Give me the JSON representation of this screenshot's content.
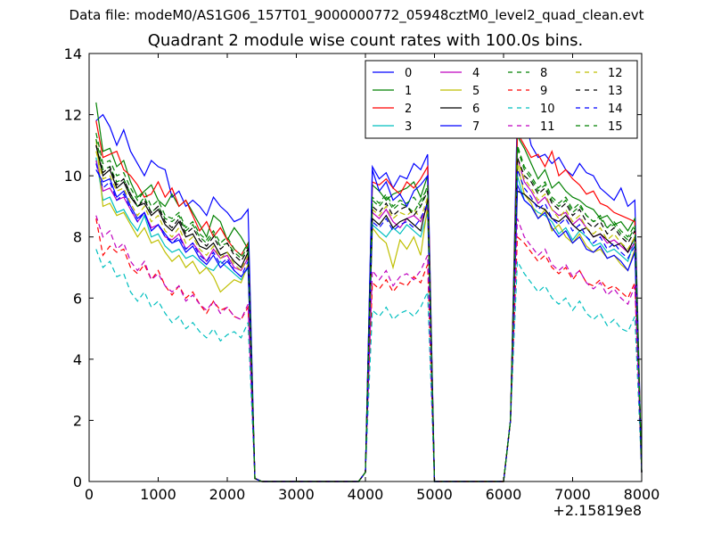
{
  "header": {
    "data_file_label": "Data file: modeM0/AS1G06_157T01_9000000772_05948cztM0_level2_quad_clean.evt"
  },
  "chart_data": {
    "type": "line",
    "title": "Quadrant 2 module wise count rates with 100.0s bins.",
    "xlabel": "",
    "ylabel": "",
    "x_offset_label": "+2.15819e8",
    "xlim": [
      0,
      8000
    ],
    "ylim": [
      0,
      14
    ],
    "xticks": [
      0,
      1000,
      2000,
      3000,
      4000,
      5000,
      6000,
      7000,
      8000
    ],
    "yticks": [
      0,
      2,
      4,
      6,
      8,
      10,
      12,
      14
    ],
    "grid": false,
    "legend_position": "top-right",
    "x": [
      100,
      200,
      300,
      400,
      500,
      600,
      700,
      800,
      900,
      1000,
      1100,
      1200,
      1300,
      1400,
      1500,
      1600,
      1700,
      1800,
      1900,
      2000,
      2100,
      2200,
      2300,
      2400,
      2500,
      2600,
      2700,
      2800,
      2900,
      3000,
      3100,
      3200,
      3300,
      3400,
      3500,
      3600,
      3700,
      3800,
      3900,
      4000,
      4100,
      4200,
      4300,
      4400,
      4500,
      4600,
      4700,
      4800,
      4900,
      5000,
      5100,
      5200,
      5300,
      5400,
      5500,
      5600,
      5700,
      5800,
      5900,
      6000,
      6100,
      6200,
      6300,
      6400,
      6500,
      6600,
      6700,
      6800,
      6900,
      7000,
      7100,
      7200,
      7300,
      7400,
      7500,
      7600,
      7700,
      7800,
      7900,
      8000
    ],
    "series": [
      {
        "name": "0",
        "color": "#0000ff",
        "dash": "solid",
        "seg": [
          11.8,
          12.0,
          11.6,
          11.0,
          11.5,
          10.8,
          10.4,
          10.0,
          10.5,
          10.3,
          10.2,
          9.3,
          9.5,
          9.0,
          9.2,
          9.0,
          8.7,
          9.3,
          9.0,
          8.8,
          8.5,
          8.6,
          8.9
        ],
        "pulse": [
          10.3,
          9.9,
          10.1,
          9.6,
          10.0,
          9.9,
          10.4,
          10.2,
          10.7
        ],
        "last": [
          12.2,
          12.0,
          11.0,
          10.6,
          10.7,
          10.4,
          10.6,
          10.2,
          10.0,
          10.4,
          10.1,
          10.0,
          9.6,
          9.4,
          9.2,
          9.6,
          9.0,
          9.2
        ]
      },
      {
        "name": "1",
        "color": "#008000",
        "dash": "solid",
        "seg": [
          12.4,
          10.8,
          10.9,
          10.3,
          10.5,
          9.8,
          9.3,
          9.5,
          9.7,
          9.2,
          9.0,
          9.4,
          9.0,
          9.2,
          8.8,
          8.4,
          8.0,
          8.7,
          8.5,
          7.9,
          8.3,
          8.0,
          7.6
        ],
        "pulse": [
          9.7,
          9.5,
          9.2,
          9.4,
          9.5,
          9.6,
          9.8,
          9.3,
          10.0
        ],
        "last": [
          11.3,
          10.9,
          10.4,
          9.9,
          10.2,
          9.6,
          9.8,
          9.5,
          9.3,
          9.2,
          9.0,
          8.9,
          8.6,
          8.7,
          8.4,
          8.5,
          8.2,
          8.6
        ]
      },
      {
        "name": "2",
        "color": "#ff0000",
        "dash": "solid",
        "seg": [
          11.8,
          10.6,
          10.7,
          10.8,
          10.2,
          10.0,
          9.7,
          9.3,
          9.4,
          9.8,
          9.3,
          9.6,
          9.0,
          9.2,
          8.7,
          8.2,
          8.5,
          8.0,
          8.3,
          7.9,
          7.6,
          7.4,
          7.8
        ],
        "pulse": [
          9.8,
          9.7,
          9.9,
          9.6,
          9.4,
          9.8,
          9.6,
          9.9,
          10.3
        ],
        "last": [
          11.4,
          11.0,
          10.6,
          10.7,
          10.3,
          10.8,
          10.0,
          10.2,
          9.9,
          9.7,
          9.4,
          9.5,
          9.1,
          9.0,
          8.8,
          8.7,
          8.6,
          8.5
        ]
      },
      {
        "name": "3",
        "color": "#00bfbf",
        "dash": "solid",
        "seg": [
          10.6,
          9.2,
          9.3,
          8.8,
          8.9,
          8.5,
          8.2,
          8.7,
          8.0,
          8.1,
          7.7,
          7.5,
          7.6,
          7.3,
          7.4,
          7.2,
          7.0,
          6.9,
          7.2,
          7.0,
          6.8,
          6.6,
          7.0
        ],
        "pulse": [
          8.4,
          8.2,
          8.0,
          8.3,
          8.1,
          8.4,
          8.2,
          8.0,
          8.8
        ],
        "last": [
          10.0,
          9.2,
          9.0,
          8.8,
          8.7,
          8.5,
          8.1,
          8.3,
          7.9,
          8.2,
          8.0,
          7.7,
          7.8,
          7.5,
          7.6,
          7.4,
          7.2,
          7.9
        ]
      },
      {
        "name": "4",
        "color": "#bf00bf",
        "dash": "solid",
        "seg": [
          10.5,
          9.5,
          9.6,
          9.2,
          9.3,
          8.9,
          8.5,
          8.8,
          8.3,
          8.4,
          8.0,
          7.9,
          8.1,
          7.6,
          7.8,
          7.5,
          7.2,
          7.6,
          7.3,
          7.4,
          7.0,
          6.9,
          7.3
        ],
        "pulse": [
          8.8,
          8.6,
          8.9,
          8.5,
          8.3,
          8.6,
          8.7,
          8.5,
          9.0
        ],
        "last": [
          10.6,
          9.8,
          9.5,
          9.1,
          9.3,
          8.9,
          8.7,
          8.8,
          8.4,
          8.6,
          8.3,
          8.0,
          8.1,
          7.8,
          7.9,
          7.7,
          7.5,
          7.8
        ]
      },
      {
        "name": "5",
        "color": "#bfbf00",
        "dash": "solid",
        "seg": [
          11.2,
          9.0,
          9.1,
          8.7,
          8.8,
          8.4,
          8.0,
          8.3,
          7.8,
          7.9,
          7.5,
          7.2,
          7.4,
          7.0,
          7.2,
          6.8,
          7.0,
          6.7,
          6.2,
          6.4,
          6.6,
          6.5,
          7.1
        ],
        "pulse": [
          8.3,
          8.0,
          7.8,
          7.0,
          7.9,
          7.6,
          8.0,
          7.4,
          9.0
        ],
        "last": [
          10.4,
          9.4,
          9.1,
          8.6,
          8.9,
          8.2,
          8.4,
          8.0,
          7.8,
          8.1,
          7.7,
          7.5,
          7.6,
          7.3,
          7.4,
          7.1,
          6.9,
          7.6
        ]
      },
      {
        "name": "6",
        "color": "#000000",
        "dash": "solid",
        "seg": [
          11.0,
          10.0,
          10.2,
          9.6,
          9.8,
          9.3,
          9.0,
          9.1,
          8.7,
          8.9,
          8.4,
          8.2,
          8.5,
          8.0,
          8.1,
          7.7,
          7.6,
          7.8,
          7.4,
          7.5,
          7.2,
          7.0,
          7.5
        ],
        "pulse": [
          8.6,
          8.4,
          8.7,
          8.3,
          8.5,
          8.6,
          8.4,
          8.2,
          9.2
        ],
        "last": [
          9.5,
          9.4,
          9.2,
          9.0,
          8.9,
          8.6,
          8.5,
          8.7,
          8.4,
          8.2,
          8.3,
          8.0,
          8.1,
          7.9,
          7.7,
          7.8,
          7.5,
          8.0
        ]
      },
      {
        "name": "7",
        "color": "#0000ff",
        "dash": "solid",
        "seg": [
          10.2,
          9.8,
          9.9,
          9.3,
          9.5,
          9.0,
          8.6,
          8.8,
          8.2,
          8.4,
          8.1,
          7.8,
          7.9,
          7.5,
          7.7,
          7.3,
          7.1,
          7.4,
          7.0,
          7.2,
          6.9,
          6.7,
          7.0
        ],
        "pulse": [
          10.2,
          9.5,
          9.8,
          9.2,
          9.4,
          9.0,
          9.5,
          9.7,
          10.0
        ],
        "last": [
          9.7,
          9.2,
          9.0,
          8.6,
          8.8,
          8.3,
          8.0,
          8.2,
          7.8,
          8.0,
          7.6,
          7.5,
          7.7,
          7.3,
          7.4,
          7.2,
          6.9,
          7.5
        ]
      },
      {
        "name": "8",
        "color": "#008000",
        "dash": "dashed",
        "seg": [
          11.2,
          10.2,
          10.3,
          9.8,
          9.9,
          9.4,
          9.0,
          9.3,
          8.8,
          9.0,
          8.6,
          8.5,
          8.7,
          8.2,
          8.4,
          8.0,
          7.8,
          8.1,
          7.7,
          7.8,
          7.5,
          7.3,
          7.7
        ],
        "pulse": [
          9.2,
          9.0,
          9.3,
          8.9,
          9.1,
          9.0,
          8.8,
          9.2,
          9.6
        ],
        "last": [
          10.9,
          10.2,
          9.9,
          9.5,
          9.7,
          9.2,
          9.0,
          9.2,
          8.8,
          9.0,
          8.7,
          8.5,
          8.6,
          8.3,
          8.4,
          8.1,
          7.9,
          8.3
        ]
      },
      {
        "name": "9",
        "color": "#ff0000",
        "dash": "dashed",
        "seg": [
          8.6,
          7.4,
          7.7,
          7.5,
          7.6,
          7.0,
          6.8,
          7.1,
          6.6,
          6.9,
          6.4,
          6.1,
          6.4,
          6.0,
          6.2,
          5.8,
          5.5,
          5.9,
          5.6,
          5.7,
          5.4,
          5.3,
          5.7
        ],
        "pulse": [
          6.5,
          6.3,
          6.6,
          6.2,
          6.5,
          6.4,
          6.7,
          6.5,
          7.1
        ],
        "last": [
          8.0,
          7.8,
          7.5,
          7.2,
          7.4,
          7.0,
          6.8,
          7.0,
          6.6,
          6.9,
          6.5,
          6.4,
          6.6,
          6.3,
          6.4,
          6.2,
          6.0,
          6.5
        ]
      },
      {
        "name": "10",
        "color": "#00bfbf",
        "dash": "dashed",
        "seg": [
          7.6,
          7.0,
          7.2,
          6.7,
          6.8,
          6.2,
          5.9,
          6.2,
          5.7,
          5.9,
          5.5,
          5.2,
          5.4,
          5.0,
          5.2,
          4.9,
          4.7,
          5.0,
          4.6,
          4.8,
          4.9,
          4.7,
          5.2
        ],
        "pulse": [
          5.6,
          5.4,
          5.7,
          5.3,
          5.5,
          5.6,
          5.4,
          5.7,
          6.2
        ],
        "last": [
          7.2,
          6.8,
          6.5,
          6.2,
          6.4,
          6.0,
          5.8,
          6.0,
          5.6,
          5.9,
          5.5,
          5.3,
          5.5,
          5.1,
          5.3,
          5.0,
          4.9,
          5.4
        ]
      },
      {
        "name": "11",
        "color": "#bf00bf",
        "dash": "dashed",
        "seg": [
          8.7,
          8.0,
          8.2,
          7.6,
          7.8,
          7.2,
          6.9,
          7.2,
          6.6,
          6.8,
          6.4,
          6.2,
          6.4,
          5.9,
          6.1,
          5.8,
          5.6,
          5.9,
          5.5,
          5.7,
          5.4,
          5.3,
          5.8
        ],
        "pulse": [
          6.9,
          6.6,
          6.9,
          6.4,
          6.7,
          6.8,
          6.6,
          6.9,
          7.4
        ],
        "last": [
          8.6,
          8.0,
          7.7,
          7.4,
          7.6,
          7.1,
          6.9,
          7.1,
          6.7,
          6.9,
          6.5,
          6.3,
          6.5,
          6.1,
          6.3,
          6.0,
          5.8,
          6.4
        ]
      },
      {
        "name": "12",
        "color": "#bfbf00",
        "dash": "dashed",
        "seg": [
          10.8,
          9.9,
          10.0,
          9.5,
          9.6,
          9.1,
          8.7,
          9.0,
          8.5,
          8.7,
          8.2,
          8.0,
          8.3,
          7.8,
          8.0,
          7.6,
          7.4,
          7.7,
          7.3,
          7.5,
          7.1,
          6.9,
          7.4
        ],
        "pulse": [
          8.9,
          8.7,
          9.0,
          8.6,
          8.8,
          8.7,
          8.9,
          8.6,
          9.3
        ],
        "last": [
          10.5,
          9.9,
          9.6,
          9.2,
          9.4,
          8.9,
          8.6,
          8.9,
          8.5,
          8.7,
          8.3,
          8.1,
          8.3,
          7.9,
          8.1,
          7.8,
          7.6,
          8.0
        ]
      },
      {
        "name": "13",
        "color": "#000000",
        "dash": "dashed",
        "seg": [
          11.0,
          10.1,
          10.3,
          9.7,
          9.9,
          9.4,
          9.0,
          9.2,
          8.8,
          9.0,
          8.5,
          8.3,
          8.6,
          8.1,
          8.3,
          7.9,
          7.7,
          8.0,
          7.6,
          7.8,
          7.4,
          7.2,
          7.6
        ],
        "pulse": [
          9.0,
          8.8,
          9.1,
          8.7,
          8.9,
          9.0,
          8.7,
          9.0,
          9.5
        ],
        "last": [
          10.6,
          10.0,
          9.8,
          9.4,
          9.6,
          9.1,
          8.9,
          9.1,
          8.7,
          8.9,
          8.5,
          8.3,
          8.5,
          8.1,
          8.3,
          8.0,
          7.8,
          8.2
        ]
      },
      {
        "name": "14",
        "color": "#0000ff",
        "dash": "dashed",
        "seg": [
          10.4,
          9.6,
          9.8,
          9.2,
          9.4,
          8.9,
          8.5,
          8.8,
          8.2,
          8.4,
          8.0,
          7.8,
          8.0,
          7.6,
          7.8,
          7.4,
          7.2,
          7.5,
          7.1,
          7.3,
          6.9,
          6.7,
          7.2
        ],
        "pulse": [
          8.5,
          8.3,
          8.6,
          8.2,
          8.4,
          8.5,
          8.3,
          8.6,
          9.1
        ],
        "last": [
          10.2,
          9.6,
          9.3,
          8.9,
          9.1,
          8.6,
          8.4,
          8.6,
          8.2,
          8.4,
          8.0,
          7.8,
          8.0,
          7.6,
          7.8,
          7.5,
          7.3,
          7.7
        ]
      },
      {
        "name": "15",
        "color": "#008000",
        "dash": "dashed",
        "seg": [
          11.4,
          10.4,
          10.5,
          10.0,
          10.1,
          9.6,
          9.2,
          9.5,
          9.0,
          9.2,
          8.7,
          8.6,
          8.8,
          8.3,
          8.5,
          8.1,
          7.9,
          8.2,
          7.8,
          8.0,
          7.6,
          7.4,
          7.8
        ],
        "pulse": [
          9.3,
          9.1,
          9.4,
          9.0,
          9.2,
          9.1,
          9.3,
          9.0,
          9.7
        ],
        "last": [
          11.0,
          10.3,
          10.0,
          9.6,
          9.8,
          9.3,
          9.1,
          9.3,
          8.9,
          9.1,
          8.7,
          8.5,
          8.7,
          8.3,
          8.5,
          8.2,
          8.0,
          8.4
        ]
      }
    ]
  }
}
